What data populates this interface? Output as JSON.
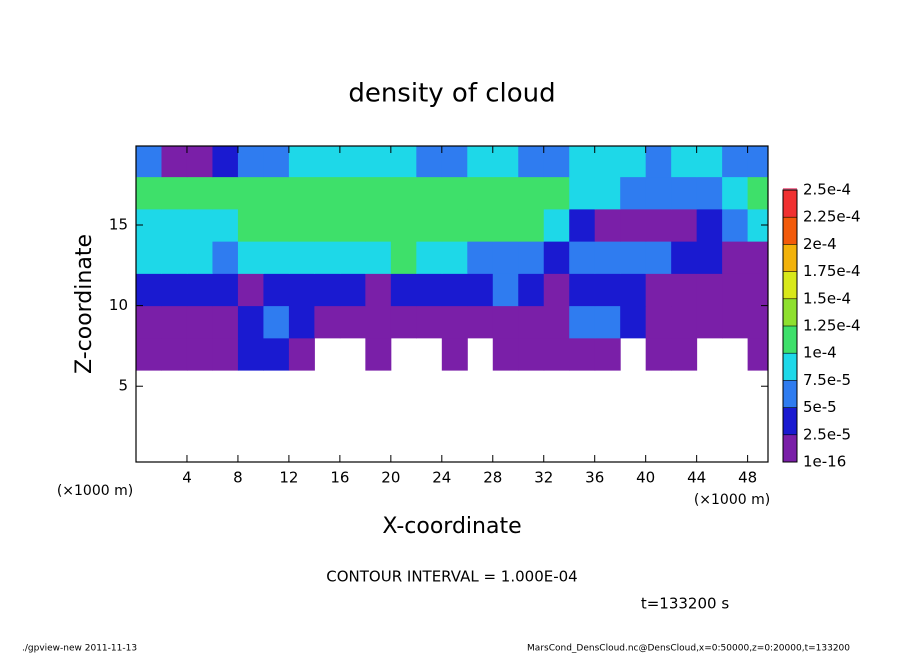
{
  "chart_data": {
    "type": "heatmap",
    "title": "density of cloud",
    "x_label": "X-coordinate",
    "y_label": "Z-coordinate",
    "x_unit": "(×1000 m)",
    "y_unit": "(×1000 m)",
    "contour_note": "CONTOUR INTERVAL = 1.000E-04",
    "time_note": "t=133200 s",
    "footer_left": "./gpview-new  2011-11-13",
    "footer_right": "MarsCond_DensCloud.nc@DensCloud,x=0:50000,z=0:20000,t=133200",
    "xlim": [
      0,
      49.6
    ],
    "ylim": [
      0.3,
      19.9
    ],
    "xticks": [
      4,
      8,
      12,
      16,
      20,
      24,
      28,
      32,
      36,
      40,
      44,
      48
    ],
    "yticks": [
      5,
      10,
      15
    ],
    "x": [
      1,
      3,
      5,
      7,
      9,
      11,
      13,
      15,
      17,
      19,
      21,
      23,
      25,
      27,
      29,
      31,
      33,
      35,
      37,
      39,
      41,
      43,
      45,
      47,
      49
    ],
    "y": [
      1,
      3,
      5,
      7,
      9,
      11,
      13,
      15,
      17,
      19
    ],
    "values": [
      [
        null,
        null,
        null,
        null,
        null,
        null,
        null,
        null,
        null,
        null,
        null,
        null,
        null,
        null,
        null,
        null,
        null,
        null,
        null,
        null,
        null,
        null,
        null,
        null,
        null
      ],
      [
        null,
        null,
        null,
        null,
        null,
        null,
        null,
        null,
        null,
        null,
        null,
        null,
        null,
        null,
        null,
        null,
        null,
        null,
        null,
        null,
        null,
        null,
        null,
        null,
        null
      ],
      [
        null,
        null,
        null,
        null,
        null,
        null,
        null,
        null,
        null,
        null,
        null,
        null,
        null,
        null,
        null,
        null,
        null,
        null,
        null,
        null,
        null,
        null,
        null,
        null,
        null
      ],
      [
        1e-05,
        1e-05,
        2e-05,
        2e-05,
        3e-05,
        3e-05,
        1e-05,
        null,
        null,
        1e-05,
        null,
        null,
        1e-05,
        null,
        1e-05,
        1e-05,
        1e-05,
        1e-05,
        1e-05,
        null,
        1e-05,
        1e-05,
        null,
        null,
        1e-05
      ],
      [
        1e-05,
        1e-05,
        1e-05,
        2e-05,
        4e-05,
        6e-05,
        3e-05,
        1e-05,
        1e-05,
        1e-05,
        1e-05,
        1e-05,
        2e-05,
        2e-05,
        1e-05,
        1e-05,
        2e-05,
        5e-05,
        6e-05,
        3e-05,
        2e-05,
        1e-05,
        1e-05,
        1e-05,
        1e-05
      ],
      [
        4e-05,
        3e-05,
        3e-05,
        3e-05,
        2e-05,
        3e-05,
        4e-05,
        3e-05,
        3e-05,
        2e-05,
        3e-05,
        4e-05,
        3e-05,
        4e-05,
        5e-05,
        3e-05,
        2e-05,
        3e-05,
        4e-05,
        3e-05,
        2e-05,
        2e-05,
        1e-05,
        2e-05,
        2e-05
      ],
      [
        8e-05,
        8e-05,
        8e-05,
        7e-05,
        8e-05,
        8e-05,
        8e-05,
        9e-05,
        8e-05,
        9e-05,
        0.000105,
        9e-05,
        8e-05,
        7e-05,
        6e-05,
        5e-05,
        4e-05,
        5e-05,
        6e-05,
        6e-05,
        5e-05,
        4e-05,
        3e-05,
        2e-05,
        2e-05
      ],
      [
        9e-05,
        9e-05,
        8e-05,
        9e-05,
        0.000102,
        0.000105,
        0.000105,
        0.000108,
        0.00011,
        0.00011,
        0.00011,
        0.00011,
        0.000108,
        0.000108,
        0.000105,
        0.000105,
        9e-05,
        3e-05,
        2e-05,
        2e-05,
        2e-05,
        2e-05,
        3e-05,
        6e-05,
        8e-05
      ],
      [
        0.000102,
        0.000102,
        0.0001,
        0.0001,
        0.000105,
        0.00011,
        0.000112,
        0.000112,
        0.000112,
        0.000112,
        0.000112,
        0.000112,
        0.000112,
        0.000112,
        0.00011,
        0.00011,
        0.000105,
        8e-05,
        8e-05,
        7e-05,
        6e-05,
        6e-05,
        7e-05,
        8e-05,
        0.000102
      ],
      [
        6e-05,
        2e-05,
        1e-05,
        3e-05,
        5e-05,
        6e-05,
        8e-05,
        9e-05,
        8e-05,
        8e-05,
        8e-05,
        7e-05,
        7e-05,
        8e-05,
        8e-05,
        7e-05,
        6e-05,
        8e-05,
        9e-05,
        8e-05,
        7e-05,
        8e-05,
        8e-05,
        6e-05,
        6e-05
      ]
    ],
    "levels": [
      {
        "value": 1e-16,
        "label": "1e-16"
      },
      {
        "value": 2.5e-05,
        "label": "2.5e-5"
      },
      {
        "value": 5e-05,
        "label": "5e-5"
      },
      {
        "value": 7.5e-05,
        "label": "7.5e-5"
      },
      {
        "value": 0.0001,
        "label": "1e-4"
      },
      {
        "value": 0.000125,
        "label": "1.25e-4"
      },
      {
        "value": 0.00015,
        "label": "1.5e-4"
      },
      {
        "value": 0.000175,
        "label": "1.75e-4"
      },
      {
        "value": 0.0002,
        "label": "2e-4"
      },
      {
        "value": 0.000225,
        "label": "2.25e-4"
      },
      {
        "value": 0.00025,
        "label": "2.5e-4"
      }
    ],
    "level_colors": [
      "#7a1fa8",
      "#1a1ad0",
      "#2f7cf0",
      "#1ed8e8",
      "#3ee06a",
      "#8ee02e",
      "#d8e81a",
      "#f2b20a",
      "#f25a0a",
      "#f03030",
      "#f27a9a"
    ]
  }
}
